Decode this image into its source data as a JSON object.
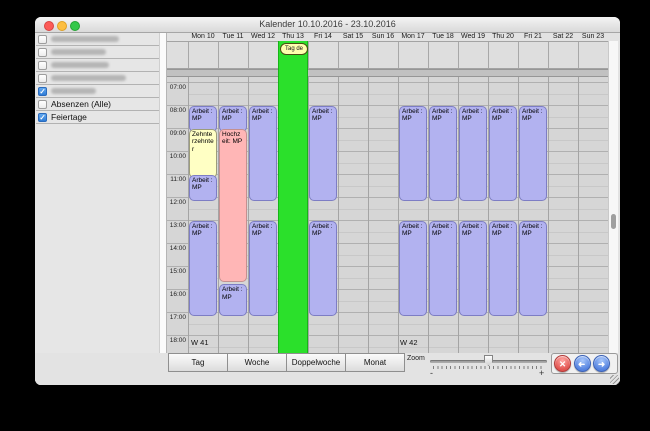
{
  "window": {
    "title": "Kalender 10.10.2016 - 23.10.2016"
  },
  "sidebar": {
    "items": [
      {
        "redacted": true,
        "checked": false,
        "blur_width": 68
      },
      {
        "redacted": true,
        "checked": false,
        "blur_width": 55
      },
      {
        "redacted": true,
        "checked": false,
        "blur_width": 58
      },
      {
        "redacted": true,
        "checked": false,
        "blur_width": 75
      },
      {
        "redacted": true,
        "checked": true,
        "blur_width": 45
      },
      {
        "label": "Absenzen (Alle)",
        "checked": false
      },
      {
        "label": "Feiertage",
        "checked": true
      }
    ]
  },
  "calendar": {
    "days": [
      "Mon 10",
      "Tue 11",
      "Wed 12",
      "Thu 13",
      "Fri 14",
      "Sat 15",
      "Sun 16",
      "Mon 17",
      "Tue 18",
      "Wed 19",
      "Thu 20",
      "Fri 21",
      "Sat 22",
      "Sun 23"
    ],
    "hours": [
      "07:00",
      "08:00",
      "09:00",
      "10:00",
      "11:00",
      "12:00",
      "13:00",
      "14:00",
      "15:00",
      "16:00",
      "17:00",
      "18:00"
    ],
    "week_labels": [
      "W 41",
      "W 42"
    ],
    "allday": {
      "day": "Thu 13",
      "label": "Tag de",
      "color": "#2be02b"
    },
    "events": [
      {
        "day": 0,
        "start": "08:00",
        "end": "09:00",
        "title": "Arbeit : MP",
        "type": "work"
      },
      {
        "day": 0,
        "start": "09:00",
        "end": "11:00",
        "title": "Zehnterzehnter",
        "type": "anniversary"
      },
      {
        "day": 0,
        "start": "11:00",
        "end": "12:00",
        "title": "Arbeit : MP",
        "type": "work"
      },
      {
        "day": 0,
        "start": "13:00",
        "end": "17:00",
        "title": "Arbeit : MP",
        "type": "work"
      },
      {
        "day": 1,
        "start": "08:00",
        "end": "09:00",
        "title": "Arbeit : MP",
        "type": "work"
      },
      {
        "day": 1,
        "start": "09:00",
        "end": "15:30",
        "title": "Hochzeit: MP",
        "type": "wedding"
      },
      {
        "day": 1,
        "start": "15:45",
        "end": "17:00",
        "title": "Arbeit : MP",
        "type": "work"
      },
      {
        "day": 2,
        "start": "08:00",
        "end": "12:00",
        "title": "Arbeit : MP",
        "type": "work"
      },
      {
        "day": 2,
        "start": "13:00",
        "end": "17:00",
        "title": "Arbeit : MP",
        "type": "work"
      },
      {
        "day": 4,
        "start": "08:00",
        "end": "12:00",
        "title": "Arbeit : MP",
        "type": "work"
      },
      {
        "day": 4,
        "start": "13:00",
        "end": "17:00",
        "title": "Arbeit : MP",
        "type": "work"
      },
      {
        "day": 7,
        "start": "08:00",
        "end": "12:00",
        "title": "Arbeit : MP",
        "type": "work"
      },
      {
        "day": 7,
        "start": "13:00",
        "end": "17:00",
        "title": "Arbeit : MP",
        "type": "work"
      },
      {
        "day": 8,
        "start": "08:00",
        "end": "12:00",
        "title": "Arbeit : MP",
        "type": "work"
      },
      {
        "day": 8,
        "start": "13:00",
        "end": "17:00",
        "title": "Arbeit : MP",
        "type": "work"
      },
      {
        "day": 9,
        "start": "08:00",
        "end": "12:00",
        "title": "Arbeit : MP",
        "type": "work"
      },
      {
        "day": 9,
        "start": "13:00",
        "end": "17:00",
        "title": "Arbeit : MP",
        "type": "work"
      },
      {
        "day": 10,
        "start": "08:00",
        "end": "12:00",
        "title": "Arbeit : MP",
        "type": "work"
      },
      {
        "day": 10,
        "start": "13:00",
        "end": "17:00",
        "title": "Arbeit : MP",
        "type": "work"
      },
      {
        "day": 11,
        "start": "08:00",
        "end": "12:00",
        "title": "Arbeit : MP",
        "type": "work"
      },
      {
        "day": 11,
        "start": "13:00",
        "end": "17:00",
        "title": "Arbeit : MP",
        "type": "work"
      }
    ]
  },
  "toolbar": {
    "views": [
      "Tag",
      "Woche",
      "Doppelwoche",
      "Monat"
    ],
    "zoom_label": "Zoom",
    "zoom_minus": "-",
    "zoom_plus": "+",
    "nav": [
      {
        "name": "delete",
        "glyph": "✕",
        "color": "red"
      },
      {
        "name": "back",
        "glyph": "➜",
        "color": "blue",
        "flip": true
      },
      {
        "name": "forward",
        "glyph": "➜",
        "color": "blue",
        "flip": false
      }
    ]
  },
  "colors": {
    "event_work": "#b2b2f0",
    "event_wedding": "#ffb6b6",
    "event_anniversary": "#ffffc4",
    "holiday_green": "#2be02b",
    "checkbox_blue": "#2f7cd6",
    "traffic_red": "#fc5b57",
    "traffic_yellow": "#fdbe41",
    "traffic_green": "#34c84a"
  }
}
